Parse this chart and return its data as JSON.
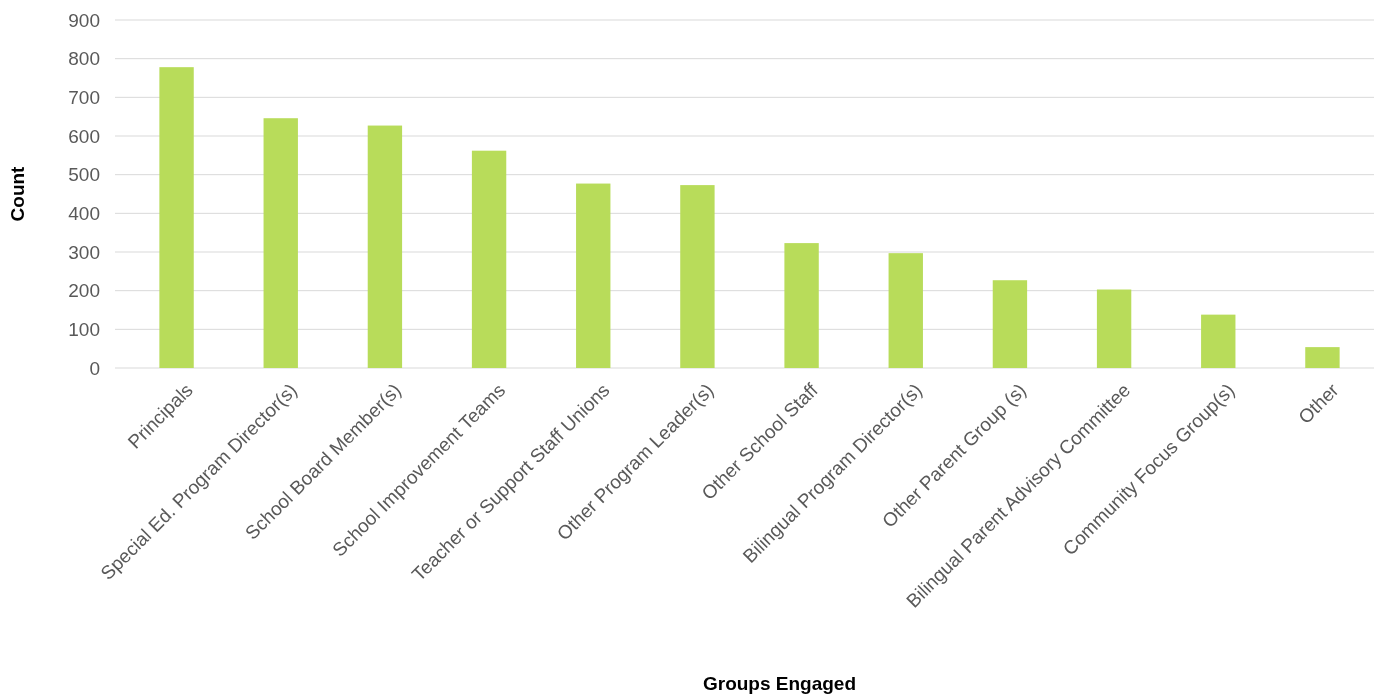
{
  "chart_data": {
    "type": "bar",
    "xlabel": "Groups Engaged",
    "ylabel": "Count",
    "categories": [
      "Principals",
      "Special Ed. Program Director(s)",
      "School Board Member(s)",
      "School Improvement Teams",
      "Teacher or Support Staff Unions",
      "Other Program Leader(s)",
      "Other School Staff",
      "Bilingual Program Director(s)",
      "Other Parent Group (s)",
      "Bilingual Parent Advisory Committee",
      "Community Focus Group(s)",
      "Other"
    ],
    "values": [
      778,
      646,
      627,
      562,
      477,
      473,
      323,
      297,
      227,
      203,
      138,
      54
    ],
    "color": "#b8dc5a",
    "ylim": [
      0,
      900
    ],
    "yticks": [
      0,
      100,
      200,
      300,
      400,
      500,
      600,
      700,
      800,
      900
    ],
    "grid": "y"
  }
}
